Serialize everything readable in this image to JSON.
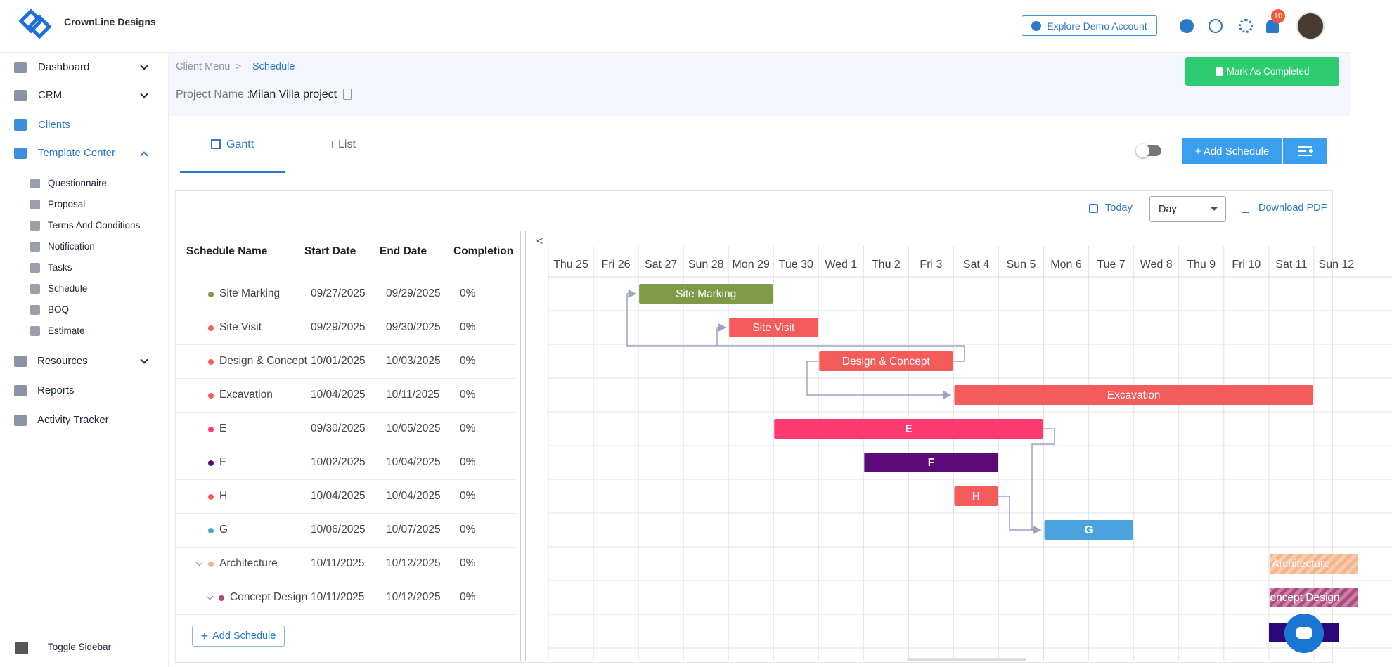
{
  "header": {
    "brand": "CrownLine Designs",
    "demo_button": "Explore Demo Account",
    "notification_count": 10
  },
  "sidebar": {
    "items": [
      "Dashboard",
      "CRM",
      "Clients",
      "Template Center"
    ],
    "template_center_items": [
      "Questionnaire",
      "Proposal",
      "Terms And Conditions",
      "Notification",
      "Tasks",
      "Schedule",
      "BOQ",
      "Estimate"
    ],
    "more_items": [
      "Resources",
      "Reports",
      "Activity Tracker"
    ],
    "toggle": "Toggle Sidebar"
  },
  "breadcrumb": [
    "Client Menu",
    "Schedule"
  ],
  "project": {
    "label": "Project Name :",
    "name": "Milan Villa project"
  },
  "mark_completed": "Mark As Completed",
  "tabs": [
    "Gantt",
    "List"
  ],
  "add_schedule_button": "+ Add Schedule",
  "toolbar": {
    "today": "Today",
    "view": "Day",
    "download": "Download PDF"
  },
  "table": {
    "columns": [
      "Schedule Name",
      "Start Date",
      "End Date",
      "Completion"
    ],
    "rows": [
      {
        "name": "Site Marking",
        "start": "09/27/2025",
        "end": "09/29/2025",
        "completion": "0%",
        "color": "#7d9a46"
      },
      {
        "name": "Site Visit",
        "start": "09/29/2025",
        "end": "09/30/2025",
        "completion": "0%",
        "color": "#f45b5b"
      },
      {
        "name": "Design & Concept",
        "start": "10/01/2025",
        "end": "10/03/2025",
        "completion": "0%",
        "color": "#f45b5b"
      },
      {
        "name": "Excavation",
        "start": "10/04/2025",
        "end": "10/11/2025",
        "completion": "0%",
        "color": "#f45b5b"
      },
      {
        "name": "E",
        "start": "09/30/2025",
        "end": "10/05/2025",
        "completion": "0%",
        "color": "#ff3a6e"
      },
      {
        "name": "F",
        "start": "10/02/2025",
        "end": "10/04/2025",
        "completion": "0%",
        "color": "#5c0a7a"
      },
      {
        "name": "H",
        "start": "10/04/2025",
        "end": "10/04/2025",
        "completion": "0%",
        "color": "#f45b5b"
      },
      {
        "name": "G",
        "start": "10/06/2025",
        "end": "10/07/2025",
        "completion": "0%",
        "color": "#4aa3df"
      },
      {
        "name": "Architecture",
        "start": "10/11/2025",
        "end": "10/12/2025",
        "completion": "0%",
        "color": "#f6b48c",
        "children": [
          {
            "name": "Concept Design",
            "start": "10/11/2025",
            "end": "10/12/2025",
            "completion": "0%",
            "color": "#b04a7e"
          }
        ]
      }
    ]
  },
  "timeline": {
    "columns": [
      "Thu 25",
      "Fri 26",
      "Sat 27",
      "Sun 28",
      "Mon 29",
      "Tue 30",
      "Wed 1",
      "Thu 2",
      "Fri 3",
      "Sat 4",
      "Sun 5",
      "Mon 6",
      "Tue 7",
      "Wed 8",
      "Thu 9",
      "Fri 10",
      "Sat 11",
      "Sun 12"
    ]
  },
  "add_schedule_link": "Add Schedule"
}
